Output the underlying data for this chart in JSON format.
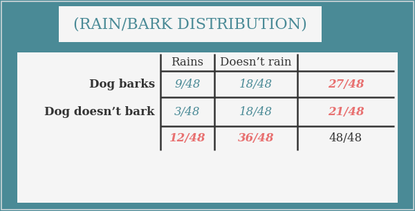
{
  "title": "(RAIN/BARK DISTRIBUTION)",
  "background_color": "#4a8a96",
  "title_bg_color": "#f5f5f5",
  "title_color": "#4a8a96",
  "table_bg_color": "#f5f5f5",
  "col_headers": [
    "Rains",
    "Doesn’t rain"
  ],
  "row_headers": [
    "Dog barks",
    "Dog doesn’t bark"
  ],
  "cell_data": [
    [
      "9/48",
      "18/48",
      "27/48"
    ],
    [
      "3/48",
      "18/48",
      "21/48"
    ]
  ],
  "totals_row": [
    "12/48",
    "36/48",
    "48/48"
  ],
  "cell_colors": [
    [
      "#4a8a96",
      "#4a8a96",
      "#e87070"
    ],
    [
      "#4a8a96",
      "#4a8a96",
      "#e87070"
    ]
  ],
  "totals_colors": [
    "#e87070",
    "#e87070",
    "#333333"
  ],
  "header_color": "#333333",
  "row_header_color": "#333333",
  "line_color": "#333333",
  "title_fontsize": 16,
  "cell_fontsize": 12,
  "header_fontsize": 12
}
